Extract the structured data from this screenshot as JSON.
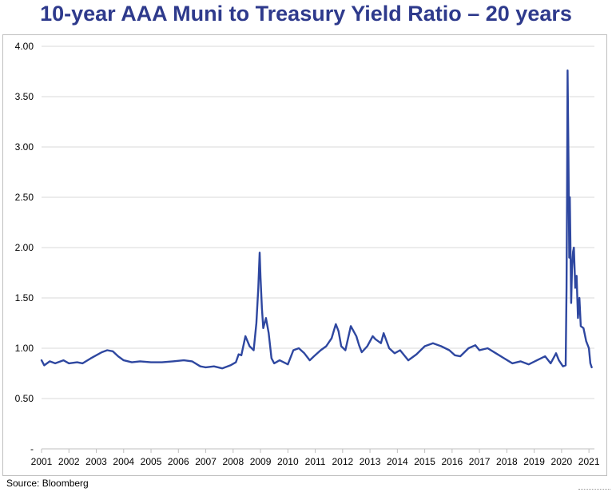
{
  "chart_data": {
    "type": "line",
    "title": "10-year AAA Muni to Treasury Yield Ratio – 20 years",
    "source": "Source: Bloomberg",
    "xlabel": "",
    "ylabel": "",
    "xlim": [
      2001.0,
      2021.2
    ],
    "ylim": [
      0,
      4.0
    ],
    "y_tick_values": [
      0,
      0.5,
      1.0,
      1.5,
      2.0,
      2.5,
      3.0,
      3.5,
      4.0
    ],
    "y_tick_labels": [
      "-",
      "0.50",
      "1.00",
      "1.50",
      "2.00",
      "2.50",
      "3.00",
      "3.50",
      "4.00"
    ],
    "x_tick_values": [
      2001,
      2002,
      2003,
      2004,
      2005,
      2006,
      2007,
      2008,
      2009,
      2010,
      2011,
      2012,
      2013,
      2014,
      2015,
      2016,
      2017,
      2018,
      2019,
      2020,
      2021
    ],
    "x_tick_labels": [
      "2001",
      "2002",
      "2003",
      "2004",
      "2005",
      "2006",
      "2007",
      "2008",
      "2009",
      "2010",
      "2011",
      "2012",
      "2013",
      "2014",
      "2015",
      "2016",
      "2017",
      "2018",
      "2019",
      "2020",
      "2021"
    ],
    "grid": "horizontal",
    "legend": "none",
    "line_color": "#2E47A0",
    "series": [
      {
        "x": [
          2001.0,
          2001.1,
          2001.3,
          2001.5,
          2001.8,
          2002.0,
          2002.3,
          2002.5,
          2002.8,
          2003.0,
          2003.2,
          2003.4,
          2003.6,
          2003.8,
          2004.0,
          2004.3,
          2004.6,
          2005.0,
          2005.4,
          2005.8,
          2006.2,
          2006.5,
          2006.8,
          2007.0,
          2007.3,
          2007.6,
          2007.9,
          2008.1,
          2008.2,
          2008.3,
          2008.45,
          2008.6,
          2008.75,
          2008.85,
          2008.92,
          2008.97,
          2009.0,
          2009.05,
          2009.1,
          2009.2,
          2009.3,
          2009.4,
          2009.5,
          2009.7,
          2010.0,
          2010.2,
          2010.4,
          2010.6,
          2010.8,
          2010.95,
          2011.2,
          2011.4,
          2011.6,
          2011.75,
          2011.85,
          2011.95,
          2012.1,
          2012.3,
          2012.5,
          2012.6,
          2012.7,
          2012.9,
          2013.1,
          2013.2,
          2013.4,
          2013.5,
          2013.7,
          2013.9,
          2014.1,
          2014.4,
          2014.7,
          2015.0,
          2015.3,
          2015.6,
          2015.9,
          2016.1,
          2016.3,
          2016.6,
          2016.85,
          2017.0,
          2017.3,
          2017.6,
          2017.9,
          2018.2,
          2018.5,
          2018.8,
          2019.1,
          2019.4,
          2019.6,
          2019.8,
          2019.9,
          2020.05,
          2020.15,
          2020.18,
          2020.2,
          2020.22,
          2020.25,
          2020.28,
          2020.3,
          2020.33,
          2020.35,
          2020.38,
          2020.42,
          2020.45,
          2020.5,
          2020.55,
          2020.6,
          2020.65,
          2020.7,
          2020.8,
          2020.9,
          2021.0,
          2021.05,
          2021.1
        ],
        "values": [
          0.88,
          0.83,
          0.87,
          0.85,
          0.88,
          0.85,
          0.86,
          0.85,
          0.9,
          0.93,
          0.96,
          0.98,
          0.97,
          0.92,
          0.88,
          0.86,
          0.87,
          0.86,
          0.86,
          0.87,
          0.88,
          0.87,
          0.82,
          0.81,
          0.82,
          0.8,
          0.83,
          0.86,
          0.94,
          0.93,
          1.12,
          1.02,
          0.98,
          1.25,
          1.6,
          1.95,
          1.7,
          1.4,
          1.2,
          1.3,
          1.15,
          0.9,
          0.85,
          0.88,
          0.84,
          0.98,
          1.0,
          0.95,
          0.88,
          0.92,
          0.98,
          1.02,
          1.1,
          1.24,
          1.17,
          1.02,
          0.98,
          1.22,
          1.12,
          1.03,
          0.96,
          1.02,
          1.12,
          1.09,
          1.05,
          1.15,
          1.0,
          0.95,
          0.98,
          0.88,
          0.94,
          1.02,
          1.05,
          1.02,
          0.98,
          0.93,
          0.92,
          1.0,
          1.03,
          0.98,
          1.0,
          0.95,
          0.9,
          0.85,
          0.87,
          0.84,
          0.88,
          0.92,
          0.85,
          0.95,
          0.88,
          0.82,
          0.83,
          1.6,
          2.45,
          3.76,
          2.9,
          1.9,
          2.5,
          1.9,
          1.45,
          1.78,
          1.96,
          2.0,
          1.6,
          1.72,
          1.3,
          1.5,
          1.22,
          1.2,
          1.07,
          1.0,
          0.85,
          0.81
        ]
      }
    ]
  }
}
